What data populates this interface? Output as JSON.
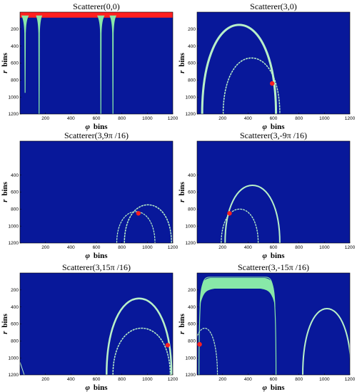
{
  "figure": {
    "background": "#ffffff",
    "plot_bg": "#08189a",
    "curve_color": "#b8f0c8",
    "band_color": "#88e8a8",
    "marker_color": "#ff2020",
    "ylabel_main": "r",
    "ylabel_unit": "bins",
    "xlabel_main": "φ",
    "xlabel_unit": "bins"
  },
  "chart_data": [
    {
      "type": "image",
      "title": "Scatterer(0,0)",
      "xlabel": "φ bins",
      "ylabel": "r bins",
      "xlim": [
        0,
        1200
      ],
      "ylim": [
        1200,
        0
      ],
      "xticks": [
        200,
        400,
        600,
        800,
        1000,
        1200
      ],
      "yticks": [
        200,
        400,
        600,
        800,
        1000,
        1200
      ],
      "bands": [
        {
          "phi_from": 0,
          "phi_to": 1200,
          "r_from": 0,
          "r_to": 40,
          "kind": "marker-band"
        }
      ],
      "curves": [
        {
          "kind": "vertical-spike",
          "phi": 40,
          "width": 60,
          "r_to": 950
        },
        {
          "kind": "vertical-spike",
          "phi": 150,
          "width": 50,
          "r_to": 1200
        },
        {
          "kind": "vertical-spike",
          "phi": 635,
          "width": 60,
          "r_to": 1200
        },
        {
          "kind": "vertical-spike",
          "phi": 730,
          "width": 55,
          "r_to": 1200
        }
      ],
      "markers": []
    },
    {
      "type": "image",
      "title": "Scatterer(3,0)",
      "xlabel": "φ bins",
      "ylabel": "r bins",
      "xlim": [
        0,
        1200
      ],
      "ylim": [
        1200,
        0
      ],
      "xticks": [
        200,
        400,
        600,
        800,
        1000,
        1200
      ],
      "yticks": [
        200,
        400,
        600,
        800,
        1000,
        1200
      ],
      "curves": [
        {
          "kind": "arch",
          "phi_left": 40,
          "phi_right": 620,
          "r_top": 150,
          "r_base": 1200,
          "thick": 3
        },
        {
          "kind": "arch",
          "phi_left": 205,
          "phi_right": 650,
          "r_top": 540,
          "r_base": 1200,
          "thick": 1.5
        }
      ],
      "markers": [
        {
          "phi": 590,
          "r": 840
        }
      ]
    },
    {
      "type": "image",
      "title": "Scatterer(3,9π /16)",
      "xlabel": "φ bins",
      "ylabel": "r bins",
      "xlim": [
        0,
        1200
      ],
      "ylim": [
        1200,
        0
      ],
      "xticks": [
        200,
        400,
        600,
        800,
        1000,
        1200
      ],
      "yticks": [
        400,
        600,
        800,
        1000,
        1200
      ],
      "curves": [
        {
          "kind": "arch",
          "phi_left": 820,
          "phi_right": 1190,
          "r_top": 750,
          "r_base": 1200,
          "thick": 1.5
        },
        {
          "kind": "arch",
          "phi_left": 760,
          "phi_right": 1060,
          "r_top": 830,
          "r_base": 1200,
          "thick": 1.2
        }
      ],
      "markers": [
        {
          "phi": 930,
          "r": 850
        }
      ]
    },
    {
      "type": "image",
      "title": "Scatterer(3,-9π /16)",
      "xlabel": "φ bins",
      "ylabel": "r bins",
      "xlim": [
        0,
        1200
      ],
      "ylim": [
        1200,
        0
      ],
      "xticks": [
        200,
        400,
        600,
        800,
        1000,
        1200
      ],
      "yticks": [
        400,
        600,
        800,
        1000,
        1200
      ],
      "curves": [
        {
          "kind": "arch",
          "phi_left": 220,
          "phi_right": 650,
          "r_top": 520,
          "r_base": 1200,
          "thick": 2
        },
        {
          "kind": "arch",
          "phi_left": 190,
          "phi_right": 480,
          "r_top": 800,
          "r_base": 1200,
          "thick": 1.3
        }
      ],
      "markers": [
        {
          "phi": 255,
          "r": 850
        }
      ]
    },
    {
      "type": "image",
      "title": "Scatterer(3,15π /16)",
      "xlabel": "φ bins",
      "ylabel": "r bins",
      "xlim": [
        0,
        1200
      ],
      "ylim": [
        1200,
        0
      ],
      "xticks": [
        200,
        400,
        600,
        800,
        1000,
        1200
      ],
      "yticks": [
        200,
        400,
        600,
        800,
        1000,
        1200
      ],
      "curves": [
        {
          "kind": "arch",
          "phi_left": 680,
          "phi_right": 1190,
          "r_top": 300,
          "r_base": 1200,
          "thick": 2.5
        },
        {
          "kind": "arch",
          "phi_left": 730,
          "phi_right": 1180,
          "r_top": 650,
          "r_base": 1200,
          "thick": 1.5
        },
        {
          "kind": "edge-hook",
          "phi": 0,
          "r_from": 1050,
          "r_to": 1200
        }
      ],
      "markers": [
        {
          "phi": 1160,
          "r": 850
        }
      ]
    },
    {
      "type": "image",
      "title": "Scatterer(3,-15π /16)",
      "xlabel": "φ bins",
      "ylabel": "r bins",
      "xlim": [
        0,
        1200
      ],
      "ylim": [
        1200,
        0
      ],
      "xticks": [
        200,
        400,
        600,
        800,
        1000,
        1200
      ],
      "yticks": [
        200,
        400,
        600,
        800,
        1000,
        1200
      ],
      "curves": [
        {
          "kind": "thick-arch",
          "phi_left": 15,
          "phi_right": 620,
          "r_top": 50,
          "r_base": 1200
        },
        {
          "kind": "arch",
          "phi_left": 830,
          "phi_right": 1210,
          "r_top": 420,
          "r_base": 1200,
          "thick": 2
        },
        {
          "kind": "arch",
          "phi_left": -40,
          "phi_right": 160,
          "r_top": 650,
          "r_base": 1200,
          "thick": 1.2
        }
      ],
      "markers": [
        {
          "phi": 20,
          "r": 840
        }
      ]
    }
  ]
}
